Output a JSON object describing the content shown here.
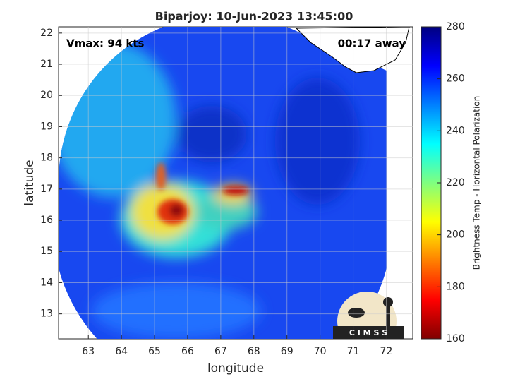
{
  "chart_data": {
    "type": "image",
    "title": "Biparjoy: 10-Jun-2023 13:45:00",
    "annotations": [
      "Vmax: 94 kts",
      "00:17 away"
    ],
    "x_label": "longitude",
    "y_label": "latitude",
    "xlim": [
      62.1,
      72.8
    ],
    "xticks": [
      63,
      64,
      65,
      66,
      67,
      68,
      69,
      70,
      71,
      72
    ],
    "ylim": [
      12.2,
      22.2
    ],
    "yticks": [
      13,
      14,
      15,
      16,
      17,
      18,
      19,
      20,
      21,
      22
    ],
    "grid": true,
    "colorbar": {
      "label": "Brightness Temp - Horizontal Polarization",
      "lim": [
        160,
        280
      ],
      "ticks": [
        160,
        180,
        200,
        220,
        240,
        260,
        280
      ],
      "colormap": "jet"
    },
    "logo_text": "C I M S S"
  }
}
